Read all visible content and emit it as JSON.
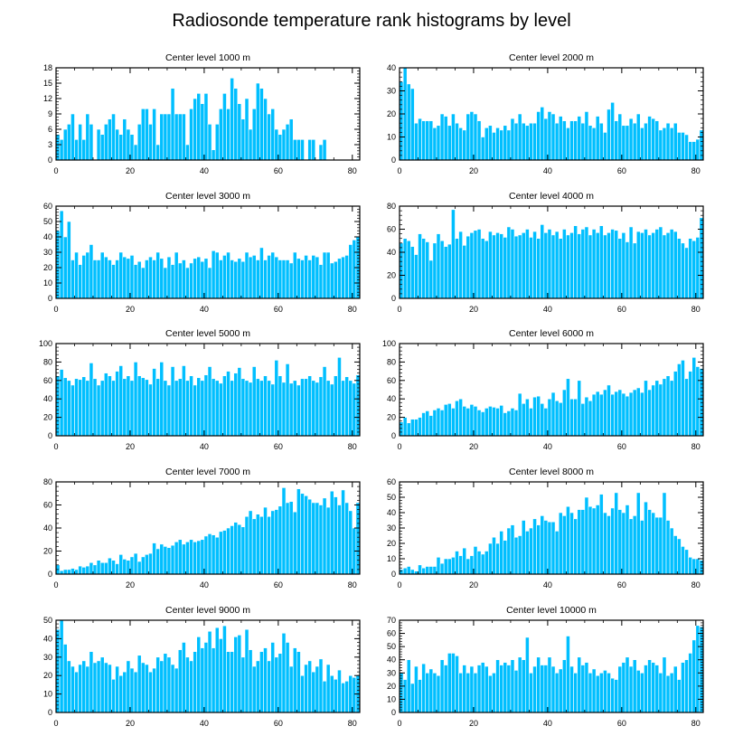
{
  "figure": {
    "title": "Radiosonde temperature rank histograms by level"
  },
  "style": {
    "bar_color": "#00bfff",
    "bar_edge": "#ffffff",
    "axis_color": "#000000"
  },
  "chart_data": [
    {
      "type": "bar",
      "title": "Center level 1000 m",
      "x_start": 0,
      "xlim": [
        0,
        82
      ],
      "ylim": [
        0,
        18
      ],
      "x_ticks": [
        0,
        20,
        40,
        60,
        80
      ],
      "y_ticks": [
        0,
        3,
        6,
        9,
        12,
        15,
        18
      ],
      "values": [
        5,
        4,
        6,
        7,
        9,
        4,
        7,
        4,
        9,
        7,
        0,
        6,
        5,
        7,
        8,
        9,
        6,
        5,
        8,
        6,
        5,
        3,
        7,
        10,
        10,
        7,
        10,
        3,
        9,
        9,
        9,
        14,
        9,
        9,
        9,
        3,
        10,
        12,
        13,
        11,
        13,
        7,
        2,
        7,
        10,
        13,
        10,
        16,
        14,
        11,
        8,
        12,
        6,
        10,
        15,
        14,
        12,
        9,
        10,
        6,
        5,
        6,
        7,
        8,
        4,
        4,
        4,
        0,
        4,
        4,
        0,
        3,
        4,
        0,
        0,
        0,
        0,
        0,
        0,
        0,
        0,
        0
      ]
    },
    {
      "type": "bar",
      "title": "Center level 2000 m",
      "x_start": 0,
      "xlim": [
        0,
        82
      ],
      "ylim": [
        0,
        40
      ],
      "x_ticks": [
        0,
        20,
        40,
        60,
        80
      ],
      "y_ticks": [
        0,
        10,
        20,
        30,
        40
      ],
      "values": [
        34,
        40,
        33,
        31,
        16,
        18,
        17,
        17,
        17,
        14,
        15,
        20,
        19,
        15,
        20,
        16,
        14,
        13,
        20,
        21,
        20,
        17,
        10,
        14,
        15,
        12,
        14,
        13,
        15,
        13,
        18,
        16,
        20,
        16,
        15,
        16,
        16,
        21,
        23,
        18,
        21,
        20,
        16,
        19,
        17,
        14,
        17,
        17,
        19,
        16,
        21,
        15,
        14,
        19,
        16,
        12,
        22,
        25,
        17,
        20,
        15,
        15,
        18,
        16,
        20,
        14,
        16,
        19,
        18,
        17,
        13,
        14,
        16,
        14,
        16,
        12,
        12,
        11,
        8,
        8,
        9,
        13
      ]
    },
    {
      "type": "bar",
      "title": "Center level 3000 m",
      "x_start": 0,
      "xlim": [
        0,
        82
      ],
      "ylim": [
        0,
        60
      ],
      "x_ticks": [
        0,
        20,
        40,
        60,
        80
      ],
      "y_ticks": [
        0,
        10,
        20,
        30,
        40,
        50,
        60
      ],
      "values": [
        44,
        57,
        40,
        50,
        25,
        30,
        22,
        28,
        30,
        35,
        25,
        25,
        30,
        27,
        25,
        22,
        25,
        30,
        27,
        26,
        28,
        22,
        24,
        20,
        25,
        27,
        25,
        30,
        26,
        20,
        27,
        22,
        30,
        23,
        25,
        20,
        23,
        26,
        27,
        24,
        26,
        20,
        31,
        30,
        25,
        28,
        30,
        25,
        24,
        26,
        24,
        30,
        27,
        28,
        25,
        33,
        25,
        28,
        30,
        27,
        25,
        25,
        25,
        23,
        30,
        26,
        25,
        28,
        25,
        28,
        27,
        22,
        30,
        30,
        23,
        24,
        26,
        27,
        28,
        35,
        38,
        40
      ]
    },
    {
      "type": "bar",
      "title": "Center level 4000 m",
      "x_start": 0,
      "xlim": [
        0,
        82
      ],
      "ylim": [
        0,
        80
      ],
      "x_ticks": [
        0,
        20,
        40,
        60,
        80
      ],
      "y_ticks": [
        0,
        20,
        40,
        60,
        80
      ],
      "values": [
        48,
        52,
        50,
        45,
        38,
        56,
        52,
        49,
        33,
        48,
        56,
        50,
        45,
        47,
        77,
        52,
        58,
        46,
        54,
        57,
        59,
        60,
        52,
        50,
        58,
        55,
        57,
        56,
        53,
        62,
        60,
        54,
        55,
        57,
        60,
        53,
        58,
        52,
        64,
        57,
        60,
        55,
        58,
        52,
        60,
        55,
        57,
        63,
        56,
        60,
        62,
        55,
        60,
        57,
        63,
        55,
        57,
        60,
        59,
        52,
        57,
        49,
        62,
        48,
        58,
        57,
        60,
        55,
        57,
        60,
        62,
        55,
        57,
        60,
        58,
        52,
        48,
        44,
        52,
        50,
        53,
        70
      ]
    },
    {
      "type": "bar",
      "title": "Center level 5000 m",
      "x_start": 0,
      "xlim": [
        0,
        82
      ],
      "ylim": [
        0,
        100
      ],
      "x_ticks": [
        0,
        20,
        40,
        60,
        80
      ],
      "y_ticks": [
        0,
        20,
        40,
        60,
        80,
        100
      ],
      "values": [
        65,
        72,
        63,
        60,
        55,
        62,
        61,
        64,
        60,
        79,
        62,
        55,
        60,
        68,
        65,
        60,
        70,
        76,
        62,
        65,
        60,
        80,
        65,
        63,
        61,
        56,
        73,
        62,
        80,
        60,
        55,
        75,
        60,
        62,
        76,
        60,
        65,
        55,
        63,
        60,
        66,
        75,
        62,
        60,
        57,
        65,
        70,
        60,
        68,
        74,
        62,
        60,
        58,
        75,
        62,
        60,
        65,
        60,
        56,
        82,
        65,
        58,
        78,
        57,
        60,
        55,
        62,
        62,
        65,
        60,
        58,
        64,
        75,
        60,
        56,
        65,
        85,
        60,
        64,
        60,
        57,
        66
      ]
    },
    {
      "type": "bar",
      "title": "Center level 6000 m",
      "x_start": 0,
      "xlim": [
        0,
        82
      ],
      "ylim": [
        0,
        100
      ],
      "x_ticks": [
        0,
        20,
        40,
        60,
        80
      ],
      "y_ticks": [
        0,
        20,
        40,
        60,
        80,
        100
      ],
      "values": [
        15,
        20,
        14,
        18,
        18,
        20,
        25,
        27,
        22,
        28,
        30,
        28,
        34,
        35,
        30,
        38,
        40,
        32,
        30,
        34,
        32,
        28,
        26,
        30,
        32,
        31,
        30,
        33,
        25,
        27,
        30,
        28,
        46,
        35,
        40,
        30,
        42,
        43,
        35,
        30,
        40,
        47,
        38,
        36,
        50,
        62,
        40,
        40,
        60,
        35,
        42,
        38,
        45,
        48,
        45,
        50,
        55,
        45,
        48,
        50,
        46,
        43,
        47,
        50,
        52,
        47,
        60,
        50,
        55,
        60,
        56,
        62,
        65,
        60,
        70,
        78,
        82,
        62,
        70,
        85,
        75,
        73
      ]
    },
    {
      "type": "bar",
      "title": "Center level 7000 m",
      "x_start": 0,
      "xlim": [
        0,
        82
      ],
      "ylim": [
        0,
        80
      ],
      "x_ticks": [
        0,
        20,
        40,
        60,
        80
      ],
      "y_ticks": [
        0,
        20,
        40,
        60,
        80
      ],
      "values": [
        8,
        3,
        4,
        4,
        5,
        4,
        7,
        6,
        7,
        10,
        8,
        12,
        10,
        10,
        14,
        12,
        9,
        17,
        13,
        12,
        15,
        18,
        11,
        15,
        17,
        18,
        27,
        22,
        26,
        24,
        23,
        25,
        28,
        30,
        26,
        28,
        30,
        28,
        29,
        30,
        33,
        35,
        34,
        32,
        37,
        38,
        40,
        42,
        45,
        43,
        41,
        50,
        55,
        48,
        52,
        50,
        58,
        50,
        55,
        56,
        59,
        75,
        62,
        63,
        54,
        74,
        70,
        68,
        65,
        62,
        62,
        60,
        66,
        58,
        72,
        67,
        60,
        73,
        62,
        55,
        40,
        62
      ]
    },
    {
      "type": "bar",
      "title": "Center level 8000 m",
      "x_start": 0,
      "xlim": [
        0,
        82
      ],
      "ylim": [
        0,
        60
      ],
      "x_ticks": [
        0,
        20,
        40,
        60,
        80
      ],
      "y_ticks": [
        0,
        10,
        20,
        30,
        40,
        50,
        60
      ],
      "values": [
        3,
        4,
        5,
        3,
        2,
        6,
        4,
        5,
        5,
        5,
        11,
        7,
        10,
        10,
        11,
        15,
        12,
        17,
        10,
        12,
        18,
        15,
        13,
        15,
        20,
        24,
        20,
        28,
        22,
        30,
        32,
        24,
        25,
        35,
        28,
        30,
        36,
        32,
        38,
        35,
        34,
        34,
        28,
        40,
        38,
        44,
        40,
        36,
        42,
        42,
        50,
        44,
        43,
        45,
        52,
        40,
        38,
        43,
        53,
        42,
        40,
        45,
        36,
        38,
        53,
        35,
        47,
        42,
        40,
        37,
        37,
        53,
        35,
        30,
        25,
        23,
        18,
        16,
        11,
        10,
        10,
        9
      ]
    },
    {
      "type": "bar",
      "title": "Center level 9000 m",
      "x_start": 0,
      "xlim": [
        0,
        82
      ],
      "ylim": [
        0,
        50
      ],
      "x_ticks": [
        0,
        20,
        40,
        60,
        80
      ],
      "y_ticks": [
        0,
        10,
        20,
        30,
        40,
        50
      ],
      "values": [
        45,
        50,
        37,
        28,
        25,
        22,
        26,
        28,
        25,
        33,
        27,
        28,
        30,
        27,
        26,
        18,
        25,
        20,
        22,
        28,
        24,
        22,
        31,
        27,
        26,
        22,
        24,
        30,
        28,
        32,
        30,
        26,
        24,
        34,
        38,
        30,
        28,
        33,
        41,
        35,
        38,
        44,
        35,
        46,
        40,
        47,
        33,
        33,
        41,
        42,
        30,
        45,
        34,
        25,
        28,
        33,
        35,
        28,
        38,
        30,
        32,
        43,
        38,
        25,
        35,
        33,
        20,
        26,
        28,
        22,
        25,
        29,
        17,
        26,
        20,
        18,
        23,
        16,
        17,
        20,
        19,
        20
      ]
    },
    {
      "type": "bar",
      "title": "Center level 10000 m",
      "x_start": 0,
      "xlim": [
        0,
        82
      ],
      "ylim": [
        0,
        70
      ],
      "x_ticks": [
        0,
        20,
        40,
        60,
        80
      ],
      "y_ticks": [
        0,
        10,
        20,
        30,
        40,
        50,
        60,
        70
      ],
      "values": [
        30,
        25,
        40,
        22,
        35,
        25,
        37,
        30,
        33,
        30,
        28,
        40,
        36,
        45,
        45,
        43,
        30,
        36,
        30,
        35,
        30,
        36,
        38,
        35,
        28,
        30,
        40,
        36,
        38,
        36,
        40,
        32,
        42,
        40,
        57,
        30,
        35,
        42,
        36,
        36,
        42,
        35,
        30,
        33,
        40,
        58,
        35,
        30,
        42,
        36,
        38,
        30,
        33,
        28,
        30,
        32,
        30,
        26,
        25,
        35,
        38,
        42,
        35,
        40,
        32,
        30,
        36,
        40,
        38,
        36,
        30,
        42,
        28,
        30,
        35,
        25,
        38,
        40,
        45,
        55,
        66,
        65
      ]
    }
  ]
}
